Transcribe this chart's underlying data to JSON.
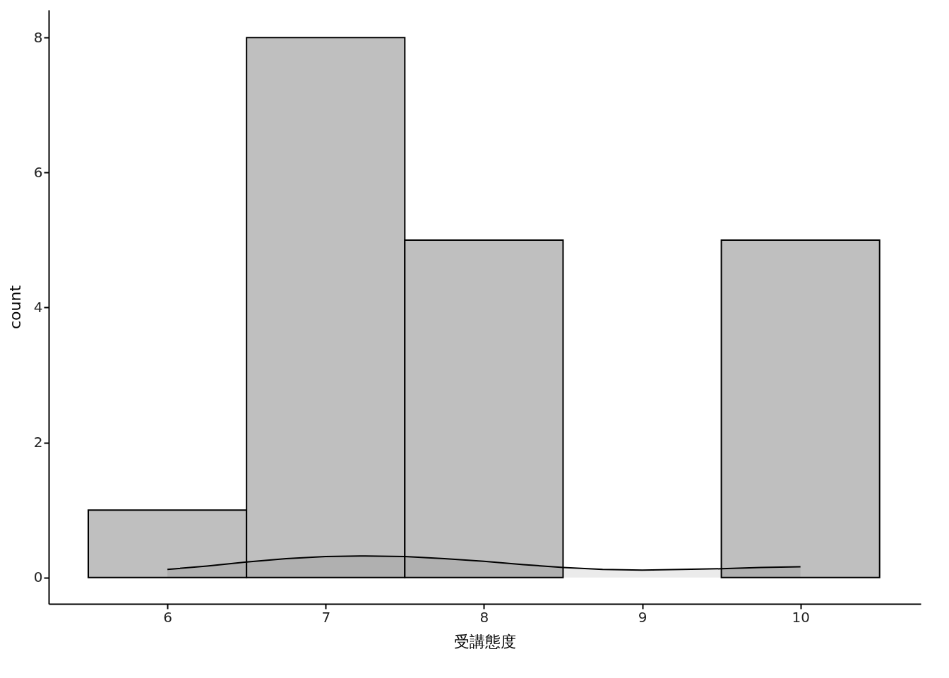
{
  "chart_data": {
    "type": "histogram",
    "xlabel": "受講態度",
    "ylabel": "count",
    "bins": [
      5.5,
      6.5,
      7.5,
      8.5,
      9.5,
      10.5
    ],
    "series": [
      {
        "color": "#bfbfbf",
        "values": [
          1,
          8,
          5,
          0,
          5
        ]
      },
      {
        "type": "area",
        "color": "#000000",
        "x": [
          6,
          6.25,
          6.5,
          6.75,
          7,
          7.25,
          7.5,
          7.75,
          8,
          8.25,
          8.5,
          8.75,
          9,
          9.25,
          9.5,
          9.75,
          10
        ],
        "values": [
          0.12,
          0.17,
          0.23,
          0.28,
          0.31,
          0.32,
          0.31,
          0.28,
          0.24,
          0.19,
          0.15,
          0.12,
          0.11,
          0.12,
          0.13,
          0.15,
          0.16
        ]
      }
    ],
    "xlim": [
      5.25,
      10.76
    ],
    "xticks": [
      6,
      7,
      8,
      9,
      10
    ],
    "ylim": [
      -0.39,
      8.41
    ],
    "yticks": [
      0,
      2,
      4,
      6,
      8
    ],
    "grid": false
  }
}
